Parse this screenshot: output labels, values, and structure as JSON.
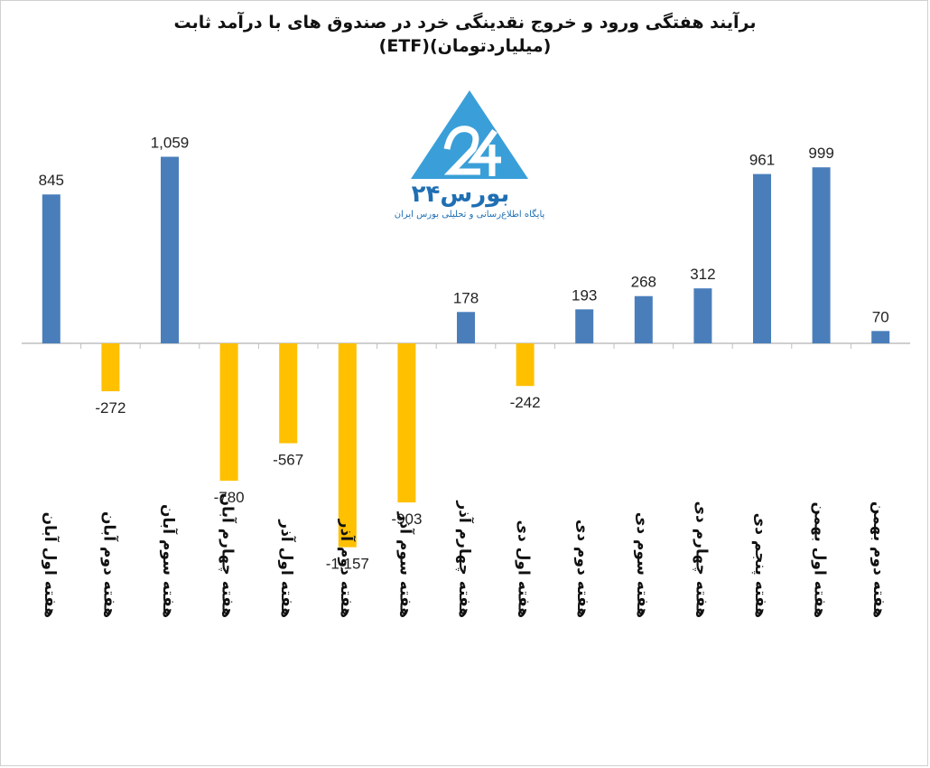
{
  "title_line1": "برآیند هفتگی ورود و خروج نقدینگی خرد در صندوق های با درآمد ثابت",
  "title_line2": "(ETF)(میلیاردتومان)",
  "logo": {
    "brand": "بورس۲۴",
    "tagline": "پایگاه اطلاع‌رسانی و تحلیلی بورس ایران"
  },
  "colors": {
    "positive": "#4a7ebb",
    "negative": "#ffc000",
    "axis": "#bfbfbf",
    "logo": "#3a9fd8"
  },
  "chart_data": {
    "type": "bar",
    "categories": [
      "هفته اول آبان",
      "هفته دوم آبان",
      "هفته سوم آبان",
      "هفته چهارم آبان",
      "هفته اول آذر",
      "هفته دوم آذر",
      "هفته سوم آذر",
      "هفته چهارم آذر",
      "هفته اول دی",
      "هفته دوم دی",
      "هفته سوم دی",
      "هفته چهارم دی",
      "هفته پنجم دی",
      "هفته اول بهمن",
      "هفته دوم بهمن"
    ],
    "values": [
      845,
      -272,
      1059,
      -780,
      -567,
      -1157,
      -903,
      178,
      -242,
      193,
      268,
      312,
      961,
      999,
      70
    ],
    "value_labels": [
      "845",
      "-272",
      "1,059",
      "-780",
      "-567",
      "-1,157",
      "-903",
      "178",
      "-242",
      "193",
      "268",
      "312",
      "961",
      "999",
      "70"
    ],
    "title": "برآیند هفتگی ورود و خروج نقدینگی خرد در صندوق های با درآمد ثابت (ETF)(میلیاردتومان)",
    "xlabel": "",
    "ylabel": "",
    "grid": false,
    "legend": "none"
  }
}
